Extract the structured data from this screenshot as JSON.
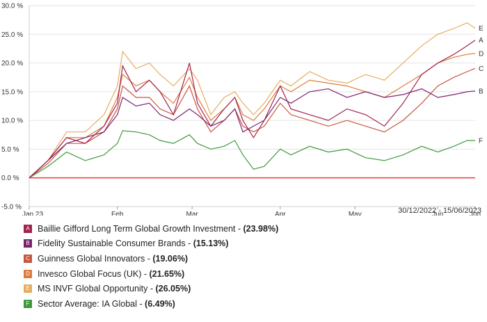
{
  "chart_data": {
    "type": "line",
    "y_ticks": [
      -5,
      0,
      5,
      10,
      15,
      20,
      25,
      30
    ],
    "y_tick_labels": [
      "-5.0 %",
      "0.0 %",
      "5.0 %",
      "10.0 %",
      "15.0 %",
      "20.0 %",
      "25.0 %",
      "30.0 %"
    ],
    "ylim": [
      -5,
      30
    ],
    "x_tick_labels": [
      "Jan 23",
      "Feb",
      "Mar",
      "Apr",
      "May",
      "Jun",
      "Jun"
    ],
    "x_tick_dates": [
      "2022-12-30",
      "2023-02-01",
      "2023-03-01",
      "2023-04-03",
      "2023-05-01",
      "2023-06-01",
      "2023-06-15"
    ],
    "date_range": "30/12/2022 - 15/06/2023",
    "zero_line_color": "#e8474c",
    "grid": "horizontal",
    "series": [
      {
        "code": "A",
        "name": "Baillie Gifford Long Term Global Growth Investment",
        "final": "23.98%",
        "color": "#a0224e",
        "points": [
          [
            "2022-12-30",
            0
          ],
          [
            "2023-01-06",
            3
          ],
          [
            "2023-01-13",
            7
          ],
          [
            "2023-01-20",
            6
          ],
          [
            "2023-01-27",
            9
          ],
          [
            "2023-02-01",
            13
          ],
          [
            "2023-02-03",
            19.5
          ],
          [
            "2023-02-08",
            15
          ],
          [
            "2023-02-13",
            17
          ],
          [
            "2023-02-17",
            15
          ],
          [
            "2023-02-22",
            11
          ],
          [
            "2023-02-28",
            20
          ],
          [
            "2023-03-03",
            13
          ],
          [
            "2023-03-08",
            9
          ],
          [
            "2023-03-13",
            12
          ],
          [
            "2023-03-17",
            14
          ],
          [
            "2023-03-20",
            10
          ],
          [
            "2023-03-24",
            7
          ],
          [
            "2023-03-28",
            10
          ],
          [
            "2023-04-03",
            16
          ],
          [
            "2023-04-07",
            12
          ],
          [
            "2023-04-14",
            11
          ],
          [
            "2023-04-21",
            10
          ],
          [
            "2023-04-28",
            12
          ],
          [
            "2023-05-05",
            11
          ],
          [
            "2023-05-12",
            9
          ],
          [
            "2023-05-19",
            13
          ],
          [
            "2023-05-26",
            18
          ],
          [
            "2023-06-01",
            20
          ],
          [
            "2023-06-07",
            21.5
          ],
          [
            "2023-06-12",
            23
          ],
          [
            "2023-06-15",
            23.98
          ]
        ]
      },
      {
        "code": "B",
        "name": "Fidelity Sustainable Consumer Brands",
        "final": "15.13%",
        "color": "#7a2270",
        "points": [
          [
            "2022-12-30",
            0
          ],
          [
            "2023-01-06",
            3
          ],
          [
            "2023-01-13",
            6
          ],
          [
            "2023-01-20",
            7
          ],
          [
            "2023-01-27",
            8
          ],
          [
            "2023-02-01",
            11
          ],
          [
            "2023-02-03",
            14
          ],
          [
            "2023-02-08",
            12.5
          ],
          [
            "2023-02-13",
            13
          ],
          [
            "2023-02-17",
            11
          ],
          [
            "2023-02-22",
            10
          ],
          [
            "2023-02-28",
            12
          ],
          [
            "2023-03-03",
            11
          ],
          [
            "2023-03-08",
            9
          ],
          [
            "2023-03-13",
            10
          ],
          [
            "2023-03-17",
            12
          ],
          [
            "2023-03-20",
            8
          ],
          [
            "2023-03-24",
            9
          ],
          [
            "2023-03-28",
            10
          ],
          [
            "2023-04-03",
            14
          ],
          [
            "2023-04-07",
            13
          ],
          [
            "2023-04-14",
            15
          ],
          [
            "2023-04-21",
            15.5
          ],
          [
            "2023-04-28",
            14
          ],
          [
            "2023-05-05",
            15
          ],
          [
            "2023-05-12",
            14
          ],
          [
            "2023-05-19",
            14.5
          ],
          [
            "2023-05-26",
            15.5
          ],
          [
            "2023-06-01",
            14
          ],
          [
            "2023-06-07",
            14.5
          ],
          [
            "2023-06-12",
            15
          ],
          [
            "2023-06-15",
            15.13
          ]
        ]
      },
      {
        "code": "C",
        "name": "Guinness Global Innovators",
        "final": "19.06%",
        "color": "#c8553d",
        "points": [
          [
            "2022-12-30",
            0
          ],
          [
            "2023-01-06",
            2.5
          ],
          [
            "2023-01-13",
            6
          ],
          [
            "2023-01-20",
            6
          ],
          [
            "2023-01-27",
            8
          ],
          [
            "2023-02-01",
            12
          ],
          [
            "2023-02-03",
            16
          ],
          [
            "2023-02-08",
            14
          ],
          [
            "2023-02-13",
            14
          ],
          [
            "2023-02-17",
            12
          ],
          [
            "2023-02-22",
            11
          ],
          [
            "2023-02-28",
            16
          ],
          [
            "2023-03-03",
            12
          ],
          [
            "2023-03-08",
            8
          ],
          [
            "2023-03-13",
            10
          ],
          [
            "2023-03-17",
            12
          ],
          [
            "2023-03-20",
            9
          ],
          [
            "2023-03-24",
            8
          ],
          [
            "2023-03-28",
            9
          ],
          [
            "2023-04-03",
            13
          ],
          [
            "2023-04-07",
            11
          ],
          [
            "2023-04-14",
            10
          ],
          [
            "2023-04-21",
            9
          ],
          [
            "2023-04-28",
            10
          ],
          [
            "2023-05-05",
            9
          ],
          [
            "2023-05-12",
            8
          ],
          [
            "2023-05-19",
            10
          ],
          [
            "2023-05-26",
            13
          ],
          [
            "2023-06-01",
            16
          ],
          [
            "2023-06-07",
            17.5
          ],
          [
            "2023-06-12",
            18.5
          ],
          [
            "2023-06-15",
            19.06
          ]
        ]
      },
      {
        "code": "D",
        "name": "Invesco Global Focus (UK)",
        "final": "21.65%",
        "color": "#e07a3a",
        "points": [
          [
            "2022-12-30",
            0
          ],
          [
            "2023-01-06",
            3
          ],
          [
            "2023-01-13",
            7
          ],
          [
            "2023-01-20",
            7
          ],
          [
            "2023-01-27",
            9
          ],
          [
            "2023-02-01",
            14
          ],
          [
            "2023-02-03",
            18
          ],
          [
            "2023-02-08",
            16
          ],
          [
            "2023-02-13",
            17
          ],
          [
            "2023-02-17",
            15
          ],
          [
            "2023-02-22",
            13
          ],
          [
            "2023-02-28",
            17.5
          ],
          [
            "2023-03-03",
            14
          ],
          [
            "2023-03-08",
            10
          ],
          [
            "2023-03-13",
            12
          ],
          [
            "2023-03-17",
            14
          ],
          [
            "2023-03-20",
            11
          ],
          [
            "2023-03-24",
            10
          ],
          [
            "2023-03-28",
            12
          ],
          [
            "2023-04-03",
            16
          ],
          [
            "2023-04-07",
            15
          ],
          [
            "2023-04-14",
            17
          ],
          [
            "2023-04-21",
            16.5
          ],
          [
            "2023-04-28",
            16
          ],
          [
            "2023-05-05",
            15
          ],
          [
            "2023-05-12",
            14
          ],
          [
            "2023-05-19",
            16
          ],
          [
            "2023-05-26",
            18
          ],
          [
            "2023-06-01",
            20
          ],
          [
            "2023-06-07",
            21
          ],
          [
            "2023-06-12",
            21.5
          ],
          [
            "2023-06-15",
            21.65
          ]
        ]
      },
      {
        "code": "E",
        "name": "MS INVF Global Opportunity",
        "final": "26.05%",
        "color": "#e5ad5e",
        "points": [
          [
            "2022-12-30",
            0
          ],
          [
            "2023-01-06",
            3
          ],
          [
            "2023-01-13",
            8
          ],
          [
            "2023-01-20",
            8
          ],
          [
            "2023-01-27",
            11
          ],
          [
            "2023-02-01",
            16
          ],
          [
            "2023-02-03",
            22
          ],
          [
            "2023-02-08",
            19
          ],
          [
            "2023-02-13",
            20
          ],
          [
            "2023-02-17",
            18
          ],
          [
            "2023-02-22",
            16
          ],
          [
            "2023-02-28",
            19
          ],
          [
            "2023-03-03",
            17
          ],
          [
            "2023-03-08",
            11
          ],
          [
            "2023-03-13",
            14
          ],
          [
            "2023-03-17",
            15
          ],
          [
            "2023-03-20",
            13
          ],
          [
            "2023-03-24",
            11
          ],
          [
            "2023-03-28",
            13
          ],
          [
            "2023-04-03",
            17
          ],
          [
            "2023-04-07",
            16
          ],
          [
            "2023-04-14",
            18.5
          ],
          [
            "2023-04-21",
            17
          ],
          [
            "2023-04-28",
            16.5
          ],
          [
            "2023-05-05",
            18
          ],
          [
            "2023-05-12",
            17
          ],
          [
            "2023-05-19",
            20
          ],
          [
            "2023-05-26",
            23
          ],
          [
            "2023-06-01",
            25
          ],
          [
            "2023-06-07",
            26
          ],
          [
            "2023-06-12",
            27
          ],
          [
            "2023-06-15",
            26.05
          ]
        ]
      },
      {
        "code": "F",
        "name": "Sector Average: IA Global",
        "final": "6.49%",
        "color": "#3f9a3c",
        "points": [
          [
            "2022-12-30",
            0
          ],
          [
            "2023-01-06",
            2
          ],
          [
            "2023-01-13",
            4.5
          ],
          [
            "2023-01-20",
            3
          ],
          [
            "2023-01-27",
            4
          ],
          [
            "2023-02-01",
            6
          ],
          [
            "2023-02-03",
            8.2
          ],
          [
            "2023-02-08",
            8
          ],
          [
            "2023-02-13",
            7.5
          ],
          [
            "2023-02-17",
            6.5
          ],
          [
            "2023-02-22",
            6
          ],
          [
            "2023-02-28",
            7.5
          ],
          [
            "2023-03-03",
            6
          ],
          [
            "2023-03-08",
            5
          ],
          [
            "2023-03-13",
            5.5
          ],
          [
            "2023-03-17",
            6.5
          ],
          [
            "2023-03-20",
            4
          ],
          [
            "2023-03-24",
            1.5
          ],
          [
            "2023-03-28",
            2
          ],
          [
            "2023-04-03",
            5
          ],
          [
            "2023-04-07",
            4
          ],
          [
            "2023-04-14",
            5.5
          ],
          [
            "2023-04-21",
            4.5
          ],
          [
            "2023-04-28",
            5
          ],
          [
            "2023-05-05",
            3.5
          ],
          [
            "2023-05-12",
            3
          ],
          [
            "2023-05-19",
            4
          ],
          [
            "2023-05-26",
            5.5
          ],
          [
            "2023-06-01",
            4.5
          ],
          [
            "2023-06-07",
            5.5
          ],
          [
            "2023-06-12",
            6.5
          ],
          [
            "2023-06-15",
            6.49
          ]
        ]
      }
    ]
  }
}
